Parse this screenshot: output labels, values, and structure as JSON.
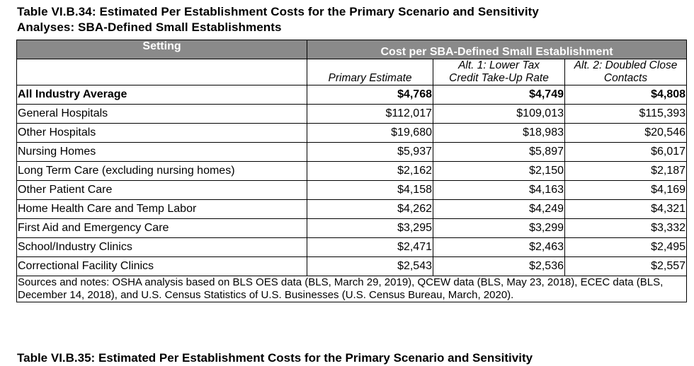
{
  "title_line1": "Table VI.B.34: Estimated Per Establishment Costs for the Primary Scenario and Sensitivity",
  "title_line2": "Analyses: SBA-Defined Small Establishments",
  "header": {
    "setting": "Setting",
    "cost_group": "Cost per SBA-Defined Small Establishment",
    "col1": "Primary Estimate",
    "col2_line1": "Alt. 1: Lower Tax",
    "col2_line2": "Credit Take-Up Rate",
    "col3_line1": "Alt. 2: Doubled Close",
    "col3_line2": "Contacts"
  },
  "rows": [
    {
      "setting": "All Industry Average",
      "primary": "$4,768",
      "alt1": "$4,749",
      "alt2": "$4,808"
    },
    {
      "setting": "General Hospitals",
      "primary": "$112,017",
      "alt1": "$109,013",
      "alt2": "$115,393"
    },
    {
      "setting": "Other Hospitals",
      "primary": "$19,680",
      "alt1": "$18,983",
      "alt2": "$20,546"
    },
    {
      "setting": "Nursing Homes",
      "primary": "$5,937",
      "alt1": "$5,897",
      "alt2": "$6,017"
    },
    {
      "setting": "Long Term Care (excluding nursing homes)",
      "primary": "$2,162",
      "alt1": "$2,150",
      "alt2": "$2,187"
    },
    {
      "setting": "Other Patient Care",
      "primary": "$4,158",
      "alt1": "$4,163",
      "alt2": "$4,169"
    },
    {
      "setting": "Home Health Care and Temp Labor",
      "primary": "$4,262",
      "alt1": "$4,249",
      "alt2": "$4,321"
    },
    {
      "setting": "First Aid and Emergency Care",
      "primary": "$3,295",
      "alt1": "$3,299",
      "alt2": "$3,332"
    },
    {
      "setting": "School/Industry Clinics",
      "primary": "$2,471",
      "alt1": "$2,463",
      "alt2": "$2,495"
    },
    {
      "setting": "Correctional Facility Clinics",
      "primary": "$2,543",
      "alt1": "$2,536",
      "alt2": "$2,557"
    }
  ],
  "notes": "Sources and notes: OSHA analysis based on BLS OES data (BLS, March 29, 2019), QCEW data (BLS, May 23, 2018), ECEC data (BLS, December 14, 2018), and U.S. Census Statistics of U.S. Businesses (U.S. Census Bureau, March, 2020).",
  "next_title": "Table VI.B.35: Estimated Per Establishment Costs for the Primary Scenario and Sensitivity"
}
